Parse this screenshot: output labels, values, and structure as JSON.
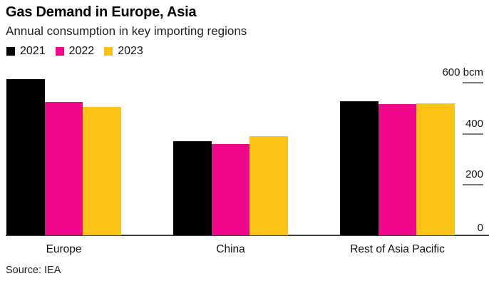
{
  "header": {
    "title": "Gas Demand in Europe, Asia",
    "subtitle": "Annual consumption in key importing regions"
  },
  "chart_data": {
    "type": "bar",
    "title": "Gas Demand in Europe, Asia",
    "subtitle": "Annual consumption in key importing regions",
    "unit": "bcm",
    "categories": [
      "Europe",
      "China",
      "Rest of Asia Pacific"
    ],
    "series": [
      {
        "name": "2021",
        "color": "#000000",
        "values": [
          610,
          367,
          525
        ]
      },
      {
        "name": "2022",
        "color": "#f2068c",
        "values": [
          522,
          358,
          514
        ]
      },
      {
        "name": "2023",
        "color": "#fcc216",
        "values": [
          503,
          389,
          517
        ]
      }
    ],
    "ylim": [
      0,
      600
    ],
    "yticks": [
      600,
      400,
      200,
      0
    ],
    "ytick_labels": [
      "600 bcm",
      "400",
      "200",
      "0"
    ],
    "legend_position": "top-left",
    "axis_side": "right",
    "grid": false
  },
  "footer": {
    "source": "Source: IEA"
  }
}
